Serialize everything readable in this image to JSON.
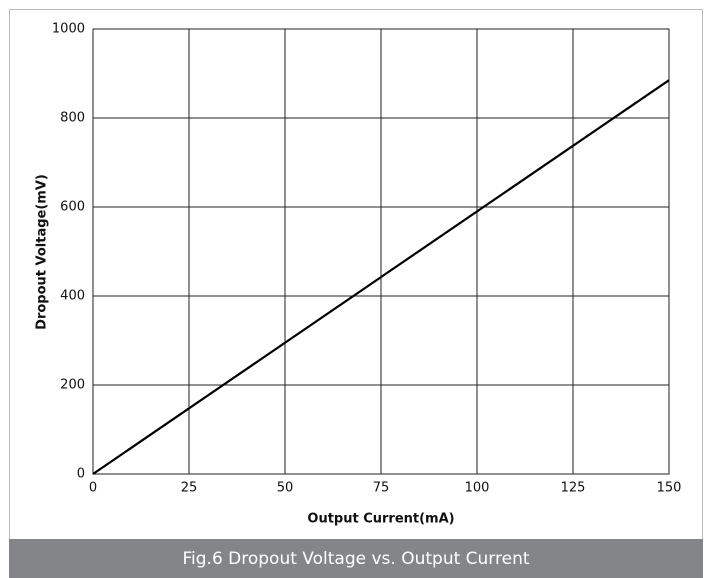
{
  "chart_data": {
    "type": "line",
    "title": "Fig.6 Dropout Voltage vs. Output Current",
    "x_label": "Output Current(mA)",
    "y_label": "Dropout Voltage(mV)",
    "x": [
      0,
      150
    ],
    "values": [
      0,
      885
    ],
    "color": "#000000",
    "xlim": [
      0,
      150
    ],
    "xticks": [
      0,
      25,
      50,
      75,
      100,
      125,
      150
    ],
    "ylim": [
      0,
      1000
    ],
    "yticks": [
      0,
      200,
      400,
      600,
      800,
      1000
    ],
    "grid": true
  }
}
